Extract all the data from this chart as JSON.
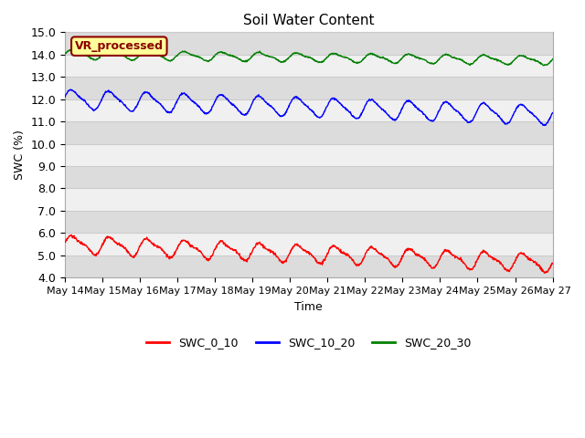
{
  "title": "Soil Water Content",
  "xlabel": "Time",
  "ylabel": "SWC (%)",
  "ylim": [
    4.0,
    15.0
  ],
  "yticks": [
    4.0,
    5.0,
    6.0,
    7.0,
    8.0,
    9.0,
    10.0,
    11.0,
    12.0,
    13.0,
    14.0,
    15.0
  ],
  "x_tick_labels": [
    "May 14",
    "May 15",
    "May 16",
    "May 17",
    "May 18",
    "May 19",
    "May 20",
    "May 21",
    "May 22",
    "May 23",
    "May 24",
    "May 25",
    "May 26",
    "May 27"
  ],
  "annotation_text": "VR_processed",
  "annotation_color": "#8B0000",
  "annotation_bg": "#FFFF99",
  "legend_labels": [
    "SWC_0_10",
    "SWC_10_20",
    "SWC_20_30"
  ],
  "line_colors": [
    "red",
    "blue",
    "green"
  ],
  "bg_dark": "#DCDCDC",
  "bg_light": "#F0F0F0",
  "grid_color": "#CCCCCC",
  "n_points": 1300,
  "swc_0_10_base": 5.5,
  "swc_0_10_trend": -0.00065,
  "swc_0_10_amp1": 0.35,
  "swc_0_10_freq1": 1.0,
  "swc_0_10_amp2": 0.12,
  "swc_0_10_freq2": 2.0,
  "swc_10_20_base": 12.0,
  "swc_10_20_trend": -0.00055,
  "swc_10_20_amp1": 0.4,
  "swc_10_20_freq1": 1.0,
  "swc_10_20_amp2": 0.1,
  "swc_10_20_freq2": 2.0,
  "swc_20_30_base": 14.0,
  "swc_20_30_trend": -0.0002,
  "swc_20_30_amp1": 0.18,
  "swc_20_30_freq1": 1.0,
  "swc_20_30_amp2": 0.06,
  "swc_20_30_freq2": 2.0
}
